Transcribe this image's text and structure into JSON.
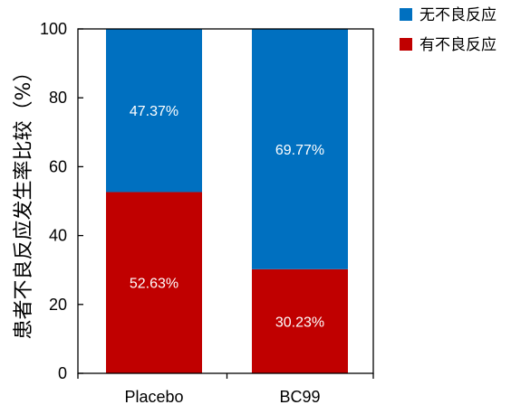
{
  "chart_data": {
    "type": "bar",
    "stacked": true,
    "categories": [
      "Placebo",
      "BC99"
    ],
    "series": [
      {
        "name": "有不良反应",
        "color": "#c00000",
        "values": [
          52.63,
          30.23
        ],
        "labels": [
          "52.63%",
          "30.23%"
        ]
      },
      {
        "name": "无不良反应",
        "color": "#0070c0",
        "values": [
          47.37,
          69.77
        ],
        "labels": [
          "47.37%",
          "69.77%"
        ]
      }
    ],
    "ylabel": "患者不良反应发生率比较（%）",
    "ylim": [
      0,
      100
    ],
    "yticks": [
      0,
      20,
      40,
      60,
      80,
      100
    ],
    "legend": {
      "placement": "top-right",
      "entries": [
        "无不良反应",
        "有不良反应"
      ]
    },
    "grid": false
  }
}
